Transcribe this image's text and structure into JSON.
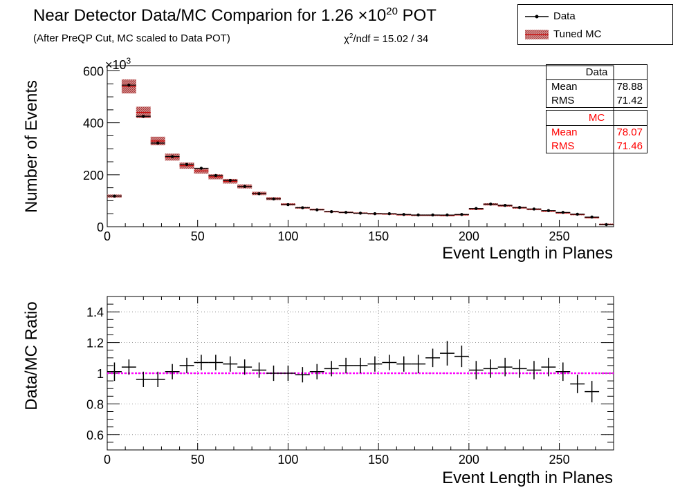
{
  "header": {
    "title_main": "Near Detector Data/MC Comparion for 1.26 ",
    "title_times": "×10",
    "title_exp": "20",
    "title_tail": " POT",
    "subtitle": "(After PreQP Cut, MC scaled to Data POT)",
    "chi2_sym": "χ",
    "chi2_exp": "2",
    "chi2_tail": "/ndf = 15.02 / 34"
  },
  "legend": {
    "data_label": "Data",
    "mc_label": "Tuned MC",
    "data_color": "#000000",
    "mc_color": "#b03030"
  },
  "stats": {
    "data": {
      "title": "Data",
      "mean_label": "Mean",
      "mean": "78.88",
      "rms_label": "RMS",
      "rms": "71.42"
    },
    "mc": {
      "title": "MC",
      "mean_label": "Mean",
      "mean": "78.07",
      "rms_label": "RMS",
      "rms": "71.46"
    }
  },
  "colors": {
    "mc_fill": "#c87878",
    "mc_center": "#cc0000",
    "ref_line": "#ff00ff",
    "mc_text": "#ff0000"
  },
  "chart_data": [
    {
      "type": "bar",
      "title": "",
      "xlabel": "Event Length in Planes",
      "ylabel": "Number of Events",
      "y_multiplier_label": "×10",
      "y_multiplier_exp": "3",
      "xlim": [
        0,
        280
      ],
      "ylim": [
        0,
        620
      ],
      "x_ticks": [
        0,
        50,
        100,
        150,
        200,
        250
      ],
      "y_ticks": [
        0,
        200,
        400,
        600
      ],
      "bin_width": 8,
      "bin_edges_start": [
        0,
        8,
        16,
        24,
        32,
        40,
        48,
        56,
        64,
        72,
        80,
        88,
        96,
        104,
        112,
        120,
        128,
        136,
        144,
        152,
        160,
        168,
        176,
        184,
        192,
        200,
        208,
        216,
        224,
        232,
        240,
        248,
        256,
        264,
        272
      ],
      "series": [
        {
          "name": "Data",
          "values": [
            118,
            545,
            425,
            322,
            270,
            240,
            225,
            197,
            178,
            155,
            127,
            107,
            85,
            73,
            65,
            58,
            55,
            52,
            50,
            50,
            47,
            45,
            45,
            45,
            47,
            70,
            87,
            82,
            74,
            68,
            62,
            55,
            48,
            37,
            8
          ]
        },
        {
          "name": "Tuned MC",
          "values": [
            118,
            540,
            440,
            330,
            268,
            235,
            215,
            192,
            175,
            155,
            128,
            108,
            86,
            73,
            66,
            58,
            55,
            52,
            50,
            49,
            46,
            44,
            44,
            43,
            46,
            68,
            86,
            81,
            73,
            67,
            60,
            53,
            47,
            35,
            9
          ]
        }
      ]
    },
    {
      "type": "scatter",
      "title": "",
      "xlabel": "Event Length in Planes",
      "ylabel": "Data/MC Ratio",
      "xlim": [
        0,
        280
      ],
      "ylim": [
        0.5,
        1.5
      ],
      "x_ticks": [
        0,
        50,
        100,
        150,
        200,
        250
      ],
      "y_ticks": [
        0.6,
        0.8,
        1,
        1.2,
        1.4
      ],
      "y_tick_labels": [
        "0.6",
        "0.8",
        "1",
        "1.2",
        "1.4"
      ],
      "reference_line": 1,
      "x": [
        4,
        12,
        20,
        28,
        36,
        44,
        52,
        60,
        68,
        76,
        84,
        92,
        100,
        108,
        116,
        124,
        132,
        140,
        148,
        156,
        164,
        172,
        180,
        188,
        196,
        204,
        212,
        220,
        228,
        236,
        244,
        252,
        260,
        268
      ],
      "values": [
        1.01,
        1.04,
        0.96,
        0.96,
        1.01,
        1.05,
        1.07,
        1.07,
        1.06,
        1.04,
        1.02,
        1.0,
        1.0,
        0.99,
        1.01,
        1.03,
        1.05,
        1.05,
        1.06,
        1.07,
        1.06,
        1.06,
        1.1,
        1.13,
        1.11,
        1.02,
        1.03,
        1.04,
        1.03,
        1.02,
        1.04,
        1.01,
        0.93,
        0.88
      ],
      "errors": [
        0.06,
        0.05,
        0.05,
        0.05,
        0.05,
        0.05,
        0.05,
        0.05,
        0.05,
        0.05,
        0.05,
        0.05,
        0.05,
        0.05,
        0.05,
        0.05,
        0.05,
        0.05,
        0.05,
        0.05,
        0.05,
        0.06,
        0.06,
        0.08,
        0.07,
        0.06,
        0.06,
        0.06,
        0.06,
        0.06,
        0.06,
        0.06,
        0.06,
        0.07
      ]
    }
  ]
}
